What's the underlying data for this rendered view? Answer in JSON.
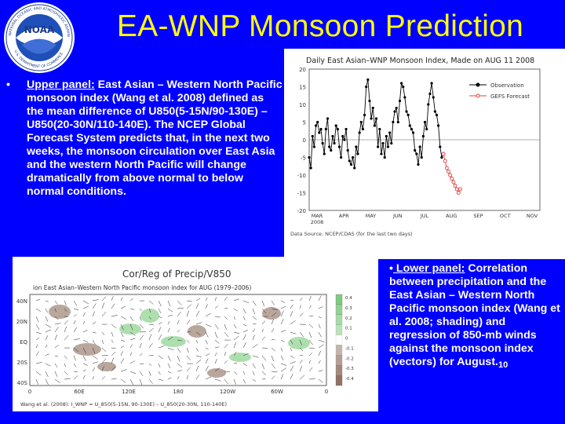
{
  "slide": {
    "title": "EA-WNP Monsoon Prediction",
    "logo_text": "NOAA",
    "logo_ring_top": "NATIONAL OCEANIC AND ATMOSPHERIC ADMINISTRATION",
    "logo_ring_bottom": "U.S. DEPARTMENT OF COMMERCE",
    "bullet_glyph": "•",
    "upper_label": "Upper panel:",
    "upper_body": " East Asian – Western North Pacific monsoon index (Wang et al. 2008) defined as the mean difference of U850(5-15N/90-130E) – U850(20-30N/110-140E). The NCEP Global Forecast System predicts that, in the next two weeks, the monsoon circulation over East Asia and the western North Pacific will change dramatically from above normal to below normal conditions.",
    "lower_label": " Lower panel:",
    "lower_body": " Correlation between precipitation and the East Asian – Western North Pacific monsoon index (Wang et al. 2008; shading) and regression of 850-mb winds against the monsoon index (vectors) for August.",
    "page_number": "10"
  },
  "chart_data": [
    {
      "type": "line",
      "title": "Daily East Asian–WNP Monsoon Index, Made on AUG 11 2008",
      "ylim": [
        -20,
        20
      ],
      "yticks": [
        "20",
        "15",
        "10",
        "5",
        "0",
        "-5",
        "-10",
        "-15",
        "-20"
      ],
      "xticks": [
        "MAR\n2008",
        "APR",
        "MAY",
        "JUN",
        "JUL",
        "AUG",
        "SEP",
        "OCT",
        "NOV"
      ],
      "xlim": [
        0,
        275
      ],
      "legend": "top-right",
      "footnote": "Data Source: NCEP/CDAS (for the last two days)",
      "series": [
        {
          "name": "Observation",
          "color": "#000000",
          "x": [
            0,
            2,
            4,
            6,
            8,
            10,
            12,
            14,
            16,
            18,
            20,
            22,
            24,
            26,
            28,
            30,
            32,
            34,
            36,
            38,
            40,
            42,
            44,
            46,
            48,
            50,
            52,
            54,
            56,
            58,
            60,
            62,
            64,
            66,
            68,
            70,
            72,
            74,
            76,
            78,
            80,
            82,
            84,
            86,
            88,
            90,
            92,
            94,
            96,
            98,
            100,
            102,
            104,
            106,
            108,
            110,
            112,
            114,
            116,
            118,
            120,
            122,
            124,
            126,
            128,
            130,
            132,
            134,
            136,
            138,
            140,
            142,
            144,
            146,
            148,
            150,
            152,
            154,
            156,
            158,
            160
          ],
          "y": [
            -5,
            -8,
            1,
            -2,
            4,
            5,
            2,
            3,
            -1,
            -4,
            3,
            6,
            -2,
            -3,
            1,
            -1,
            4,
            3,
            -2,
            -5,
            1,
            0,
            3,
            -3,
            -6,
            -7,
            -5,
            -8,
            -2,
            -4,
            2,
            5,
            3,
            7,
            15,
            17,
            11,
            6,
            9,
            4,
            6,
            -2,
            3,
            -4,
            -1,
            -5,
            1,
            -2,
            2,
            -1,
            5,
            8,
            9,
            5,
            11,
            16,
            15,
            12,
            8,
            7,
            4,
            3,
            2,
            -3,
            -4,
            -7,
            -2,
            -5,
            1,
            5,
            3,
            10,
            13,
            16,
            12,
            8,
            7,
            4,
            -2,
            -5,
            -4
          ]
        },
        {
          "name": "GEFS Forecast",
          "color": "#e04040",
          "x": [
            160,
            162,
            164,
            166,
            168,
            170,
            172,
            174,
            176,
            178,
            180
          ],
          "y": [
            -4,
            -6,
            -8,
            -9,
            -10,
            -11,
            -12,
            -13,
            -14,
            -15,
            -14
          ]
        }
      ]
    },
    {
      "type": "heatmap",
      "title": "Cor/Reg of Precip/V850",
      "subtitle": "ion East Asian–Western North Pacific monsoon index for AUG (1979–2006)",
      "xticks": [
        "0",
        "60E",
        "120E",
        "180",
        "120W",
        "60W",
        "0"
      ],
      "yticks": [
        "40N",
        "20N",
        "EQ",
        "20S",
        "40S"
      ],
      "colorbar": [
        "0.4",
        "0.3",
        "0.2",
        "0.1",
        "0",
        "-0.1",
        "-0.2",
        "-0.3",
        "-0.4"
      ],
      "footnote": "Wang et al. (2008): I_WNP = U_850(5-15N, 90-130E) – U_850(20-30N, 110-140E)",
      "colors": {
        "positive": "#78c878",
        "negative": "#8b6c5c",
        "vector": "#222222"
      }
    }
  ]
}
